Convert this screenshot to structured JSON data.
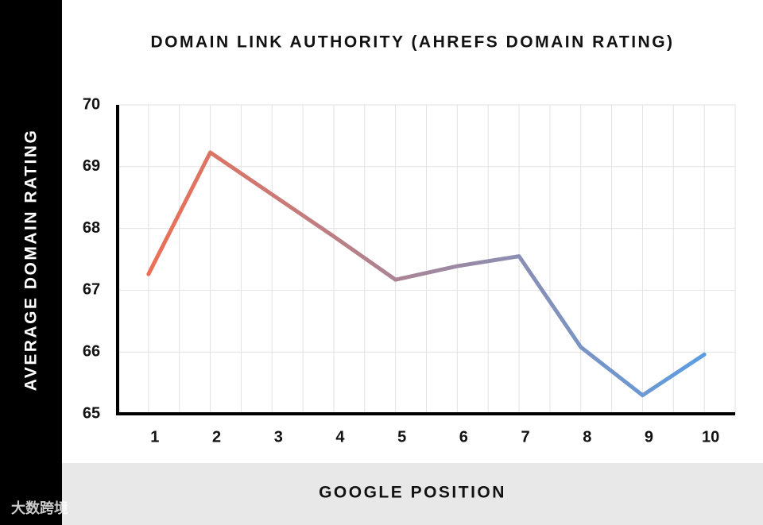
{
  "chart_data": {
    "type": "line",
    "title": "DOMAIN LINK AUTHORITY (AHREFS DOMAIN RATING)",
    "x_label": "GOOGLE POSITION",
    "y_label": "AVERAGE DOMAIN RATING",
    "categories": [
      "1",
      "2",
      "3",
      "4",
      "5",
      "6",
      "7",
      "8",
      "9",
      "10"
    ],
    "values": [
      67.26,
      69.23,
      68.55,
      67.87,
      67.17,
      67.39,
      67.55,
      66.08,
      65.3,
      65.96
    ],
    "color_start": "#ec6f55",
    "color_end": "#5a9ee3",
    "ylim": [
      65,
      70
    ],
    "yticks": [
      65,
      66,
      67,
      68,
      69,
      70
    ],
    "grid": true,
    "watermark": "大数跨境"
  }
}
